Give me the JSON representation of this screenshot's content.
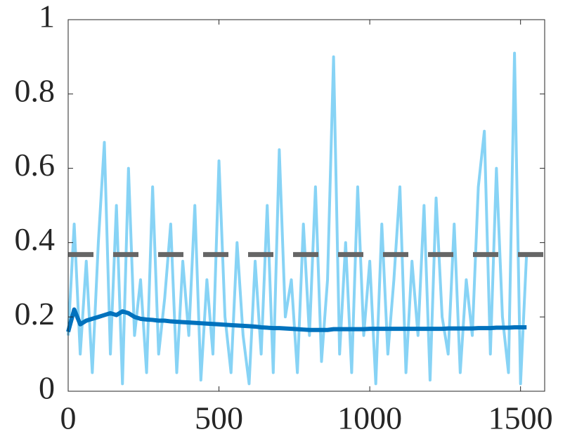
{
  "chart_data": {
    "type": "line",
    "x": [
      0,
      20,
      40,
      60,
      80,
      100,
      120,
      140,
      160,
      180,
      200,
      220,
      240,
      260,
      280,
      300,
      320,
      340,
      360,
      380,
      400,
      420,
      440,
      460,
      480,
      500,
      520,
      540,
      560,
      580,
      600,
      620,
      640,
      660,
      680,
      700,
      720,
      740,
      760,
      780,
      800,
      820,
      840,
      860,
      880,
      900,
      920,
      940,
      960,
      980,
      1000,
      1020,
      1040,
      1060,
      1080,
      1100,
      1120,
      1140,
      1160,
      1180,
      1200,
      1220,
      1240,
      1260,
      1280,
      1300,
      1320,
      1340,
      1360,
      1380,
      1400,
      1420,
      1440,
      1460,
      1480,
      1500,
      1520
    ],
    "series": [
      {
        "color": "#87d3f5",
        "width": 4,
        "values": [
          0.15,
          0.45,
          0.1,
          0.35,
          0.05,
          0.4,
          0.67,
          0.1,
          0.5,
          0.02,
          0.6,
          0.15,
          0.3,
          0.05,
          0.55,
          0.1,
          0.25,
          0.45,
          0.05,
          0.35,
          0.15,
          0.5,
          0.03,
          0.3,
          0.1,
          0.62,
          0.2,
          0.05,
          0.4,
          0.15,
          0.02,
          0.35,
          0.1,
          0.5,
          0.05,
          0.65,
          0.2,
          0.3,
          0.05,
          0.45,
          0.15,
          0.55,
          0.08,
          0.3,
          0.9,
          0.1,
          0.4,
          0.05,
          0.55,
          0.15,
          0.35,
          0.02,
          0.45,
          0.1,
          0.3,
          0.55,
          0.05,
          0.35,
          0.15,
          0.5,
          0.03,
          0.52,
          0.2,
          0.1,
          0.45,
          0.05,
          0.3,
          0.15,
          0.55,
          0.7,
          0.1,
          0.6,
          0.2,
          0.05,
          0.91,
          0.02,
          0.37
        ]
      },
      {
        "color": "#0072bd",
        "width": 6,
        "values": [
          0.16,
          0.22,
          0.18,
          0.19,
          0.195,
          0.2,
          0.205,
          0.21,
          0.205,
          0.215,
          0.21,
          0.2,
          0.195,
          0.193,
          0.192,
          0.19,
          0.19,
          0.188,
          0.187,
          0.186,
          0.185,
          0.184,
          0.183,
          0.182,
          0.181,
          0.18,
          0.179,
          0.178,
          0.177,
          0.176,
          0.175,
          0.174,
          0.172,
          0.171,
          0.17,
          0.17,
          0.169,
          0.168,
          0.167,
          0.166,
          0.165,
          0.165,
          0.165,
          0.165,
          0.167,
          0.167,
          0.167,
          0.167,
          0.167,
          0.167,
          0.168,
          0.168,
          0.168,
          0.168,
          0.168,
          0.168,
          0.168,
          0.168,
          0.168,
          0.168,
          0.168,
          0.168,
          0.168,
          0.169,
          0.169,
          0.169,
          0.169,
          0.169,
          0.17,
          0.17,
          0.17,
          0.171,
          0.171,
          0.171,
          0.172,
          0.172,
          0.172
        ]
      }
    ],
    "hline": {
      "value": 0.368,
      "color": "#666666"
    },
    "xlim": [
      0,
      1580
    ],
    "xticks": [
      0,
      500,
      1000,
      1500
    ],
    "ylim": [
      0,
      1
    ],
    "yticks": [
      0,
      0.2,
      0.4,
      0.6,
      0.8,
      1
    ]
  }
}
